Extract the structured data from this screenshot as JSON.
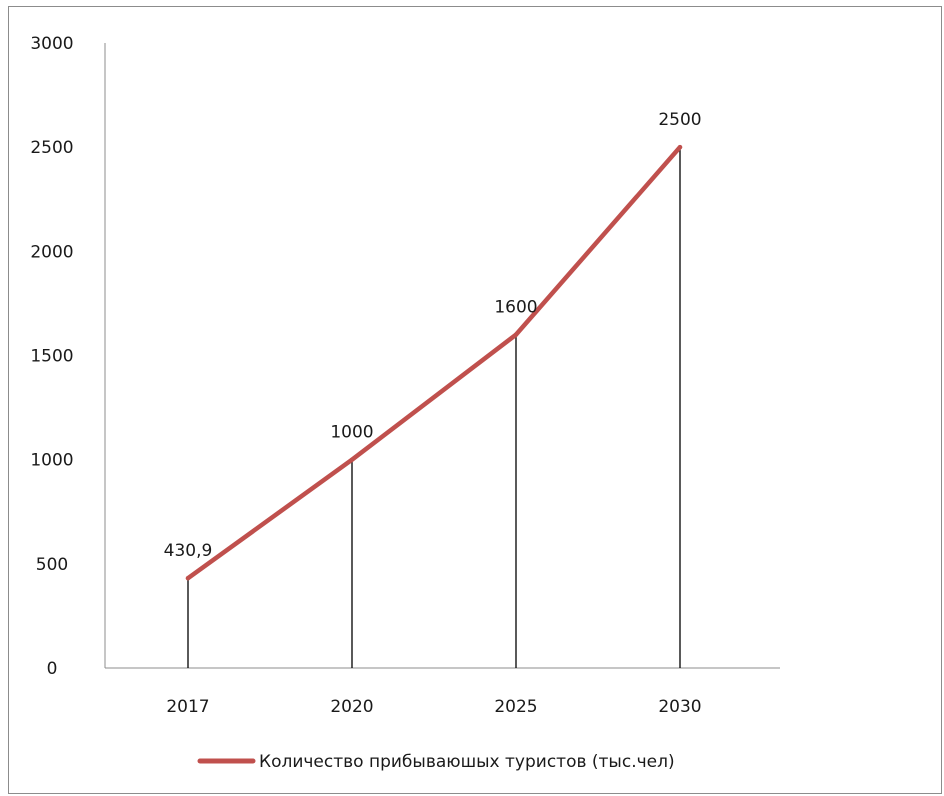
{
  "chart_data": {
    "type": "line",
    "categories": [
      "2017",
      "2020",
      "2025",
      "2030"
    ],
    "series": [
      {
        "name": "Количество прибываюшых туристов (тыс.чел)",
        "values": [
          430.9,
          1000,
          1600,
          2500
        ],
        "data_labels": [
          "430,9",
          "1000",
          "1600",
          "2500"
        ],
        "color": "#c0504d"
      }
    ],
    "yticks": [
      "0",
      "500",
      "1000",
      "1500",
      "2000",
      "2500",
      "3000"
    ],
    "ylim": [
      0,
      3000
    ],
    "drop_lines": true,
    "grid": false,
    "legend_position": "bottom",
    "title": "",
    "xlabel": "",
    "ylabel": ""
  }
}
